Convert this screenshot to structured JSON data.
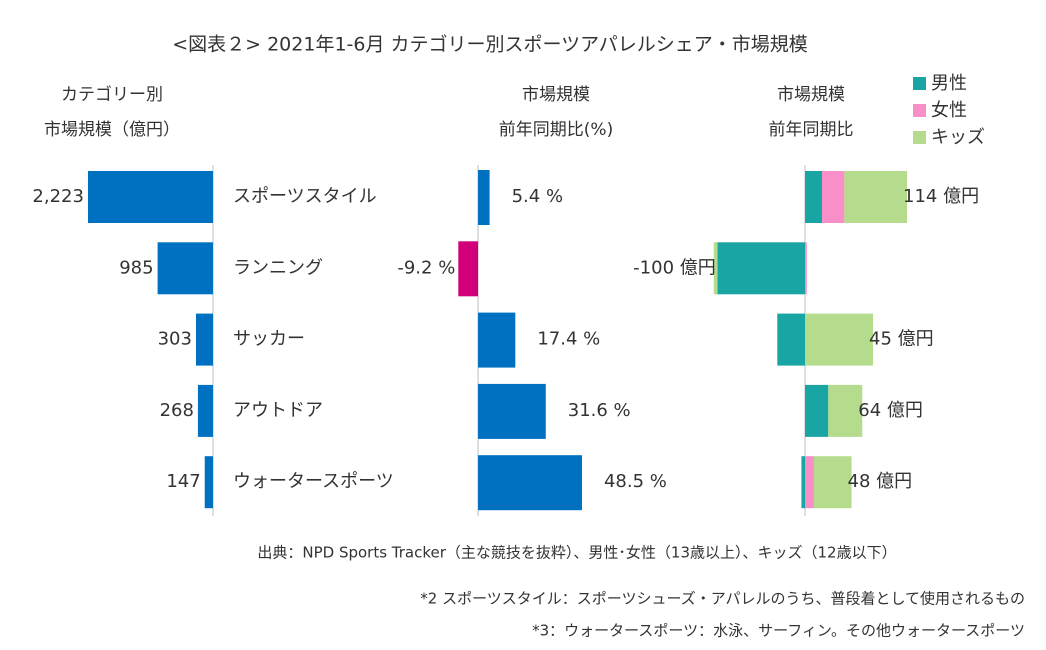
{
  "title": "<図表２> 2021年1-6月 カテゴリー別スポーツアパレルシェア・市場規模",
  "chart_data": [
    {
      "type": "hbar-left",
      "title": [
        "カテゴリー別",
        "市場規模（億円）"
      ],
      "categories": [
        "スポーツスタイル",
        "ランニング",
        "サッカー",
        "アウトドア",
        "ウォータースポーツ"
      ],
      "values": [
        2223,
        985,
        303,
        268,
        147
      ],
      "value_labels": [
        "2,223",
        "985",
        "303",
        "268",
        "147"
      ],
      "color": "#0070c0",
      "xlim": [
        2400,
        0
      ]
    },
    {
      "type": "hbar",
      "title": [
        "市場規模",
        "前年同期比(%)"
      ],
      "values": [
        5.4,
        -9.2,
        17.4,
        31.6,
        48.5
      ],
      "value_labels": [
        "5.4 %",
        "-9.2 %",
        "17.4 %",
        "31.6 %",
        "48.5 %"
      ],
      "color": "#0070c0",
      "negative_color": "#d1007a",
      "xlim": [
        -10,
        50
      ]
    },
    {
      "type": "hbar-stacked",
      "title": [
        "市場規模",
        "前年同期比"
      ],
      "series": [
        {
          "name": "男性",
          "color": "#1aa5a5",
          "values": [
            19,
            -98,
            -31,
            26,
            -4
          ]
        },
        {
          "name": "女性",
          "color": "#f98fc8",
          "values": [
            25,
            2,
            0,
            0,
            10
          ]
        },
        {
          "name": "キッズ",
          "color": "#b5dc8c",
          "values": [
            70,
            -4,
            76,
            38,
            42
          ]
        }
      ],
      "totals": [
        114,
        -100,
        45,
        64,
        48
      ],
      "total_labels": [
        "114 億円",
        "-100 億円",
        "45 億円",
        "64 億円",
        "48 億円"
      ],
      "xlim": [
        -110,
        120
      ],
      "legend": "top-right"
    }
  ],
  "footnotes": [
    "出典：NPD Sports Tracker（主な競技を抜粋）、男性･女性（13歳以上）、キッズ（12歳以下）",
    "*2 スポーツスタイル：スポーツシューズ・アパレルのうち、普段着として使用されるもの",
    "*3：ウォータースポーツ：水泳、サーフィン。その他ウォータースポーツ"
  ]
}
